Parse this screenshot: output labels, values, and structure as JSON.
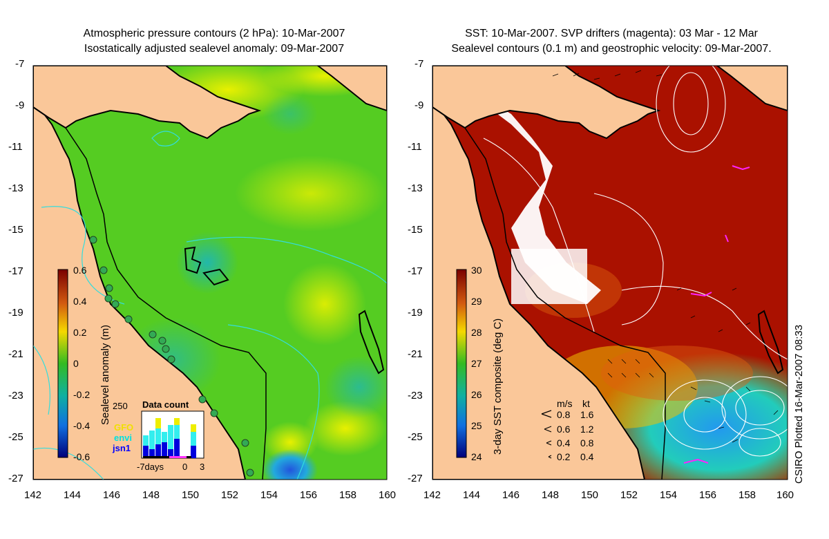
{
  "left_panel": {
    "title_line1": "Atmospheric pressure contours (2 hPa): 10-Mar-2007",
    "title_line2": "Isostatically adjusted sealevel anomaly: 09-Mar-2007",
    "colorbar": {
      "title": "Sealevel anomaly (m)",
      "labels": [
        "0.6",
        "0.4",
        "0.2",
        "0",
        "-0.2",
        "-0.4",
        "-0.6"
      ],
      "range": [
        -0.6,
        0.6
      ]
    },
    "data_count": {
      "title": "Data count",
      "ymax_label": "250",
      "legend": [
        "GFO",
        "envi",
        "jsn1"
      ],
      "legend_colors": [
        "#ffff00",
        "#00ffff",
        "#0000ff"
      ],
      "xaxis_labels": [
        "-7days",
        "0",
        "3"
      ]
    }
  },
  "right_panel": {
    "title_line1": "SST: 10-Mar-2007. SVP drifters (magenta): 03 Mar - 12 Mar",
    "title_line2": "Sealevel contours (0.1 m) and geostrophic velocity: 09-Mar-2007.",
    "colorbar": {
      "title": "3-day SST composite (deg C)",
      "labels": [
        "30",
        "29",
        "28",
        "27",
        "26",
        "25",
        "24"
      ],
      "range": [
        24,
        30
      ]
    },
    "velocity_key": {
      "header_ms": "m/s",
      "header_kt": "kt",
      "rows": [
        {
          "ms": "0.8",
          "kt": "1.6"
        },
        {
          "ms": "0.6",
          "kt": "1.2"
        },
        {
          "ms": "0.4",
          "kt": "0.8"
        },
        {
          "ms": "0.2",
          "kt": "0.4"
        }
      ]
    }
  },
  "axes": {
    "lon_labels": [
      "142",
      "144",
      "146",
      "148",
      "150",
      "152",
      "154",
      "156",
      "158",
      "160"
    ],
    "lat_labels": [
      "-7",
      "-9",
      "-11",
      "-13",
      "-15",
      "-17",
      "-19",
      "-21",
      "-23",
      "-25",
      "-27"
    ],
    "lon_range": [
      142,
      160
    ],
    "lat_range": [
      -27,
      -7
    ]
  },
  "credit": "CSIRO Plotted 16-Mar-2007 08:33",
  "colors": {
    "land": "#fac799",
    "sea_green": "#55cc22",
    "sst_red": "#aa1100",
    "contour_cyan": "#33dddd"
  }
}
